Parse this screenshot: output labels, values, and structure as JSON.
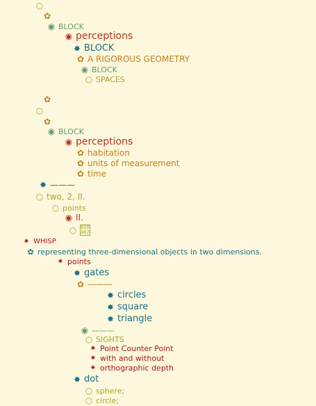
{
  "glyphs": {
    "open_circle": "○",
    "flower": "✿",
    "dot_circle": "◉",
    "burst": "✸",
    "star": "✷"
  },
  "tree": {
    "n1": {
      "label": "",
      "icon": "open-circle-icon"
    },
    "n2": {
      "label": "",
      "icon": "flower-icon"
    },
    "n3": {
      "label": "BLOCK",
      "icon": "dot-circle-icon"
    },
    "n4": {
      "label": "perceptions",
      "icon": "dot-circle-icon"
    },
    "n5": {
      "label": "BLOCK",
      "icon": "burst-icon"
    },
    "n6": {
      "label": "A RIGOROUS GEOMETRY",
      "icon": "flower-icon"
    },
    "n7": {
      "label": "BLOCK",
      "icon": "dot-circle-icon"
    },
    "n8": {
      "label": "SPACES",
      "icon": "open-circle-icon"
    },
    "n9": {
      "label": "",
      "icon": "flower-icon"
    },
    "n10": {
      "label": "",
      "icon": "open-circle-icon"
    },
    "n11": {
      "label": "",
      "icon": "flower-icon"
    },
    "n12": {
      "label": "BLOCK",
      "icon": "dot-circle-icon"
    },
    "n13": {
      "label": "perceptions",
      "icon": "dot-circle-icon"
    },
    "n14": {
      "label": "habitation",
      "icon": "flower-icon"
    },
    "n15": {
      "label": "units of measurement",
      "icon": "flower-icon"
    },
    "n16": {
      "label": "time",
      "icon": "flower-icon"
    },
    "n17": {
      "label": "———",
      "icon": "burst-icon"
    },
    "n18": {
      "label": "two, 2, II.",
      "icon": "open-circle-icon"
    },
    "n19": {
      "label": "points",
      "icon": "open-circle-icon"
    },
    "n20": {
      "label": "II.",
      "icon": "dot-circle-icon"
    },
    "n21": {
      "label": "",
      "icon": "open-circle-icon",
      "badge_top": "010",
      "badge_bottom": "A62"
    },
    "n22": {
      "label": "WHISP",
      "icon": "star-icon"
    },
    "n23": {
      "label": "representing three-dimensional objects in two dimensions.",
      "icon": "flower-icon"
    },
    "n24": {
      "label": "points",
      "icon": "star-icon"
    },
    "n25": {
      "label": "gates",
      "icon": "burst-icon"
    },
    "n26": {
      "label": "———",
      "icon": "flower-icon"
    },
    "n27": {
      "label": "circles",
      "icon": "burst-icon"
    },
    "n28": {
      "label": "square",
      "icon": "burst-icon"
    },
    "n29": {
      "label": "triangle",
      "icon": "burst-icon"
    },
    "n30": {
      "label": "———",
      "icon": "dot-circle-icon"
    },
    "n31": {
      "label": "SIGHTS",
      "icon": "open-circle-icon"
    },
    "n32": {
      "label": "Point Counter Point",
      "icon": "star-icon"
    },
    "n33": {
      "label": "with and without",
      "icon": "star-icon"
    },
    "n34": {
      "label": "orthographic depth",
      "icon": "star-icon"
    },
    "n35": {
      "label": "dot",
      "icon": "burst-icon"
    },
    "n36": {
      "label": "sphere;",
      "icon": "open-circle-icon"
    },
    "n37": {
      "label": "circle;",
      "icon": "open-circle-icon"
    }
  }
}
